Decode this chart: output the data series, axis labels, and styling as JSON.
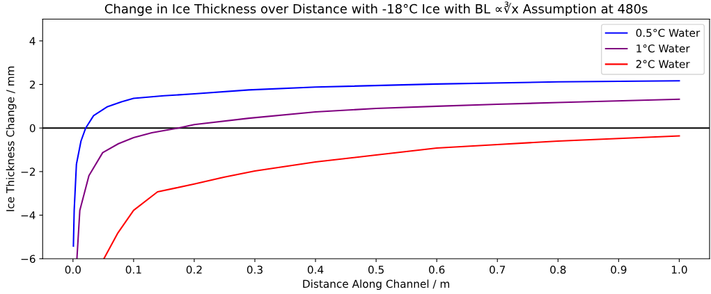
{
  "chart_data": {
    "type": "line",
    "title": "Change in Ice Thickness over Distance with -18°C Ice with BL ∝∛x Assumption at 480s",
    "xlabel": "Distance Along Channel / m",
    "ylabel": "Ice Thickness Change / mm",
    "xlim": [
      -0.05,
      1.05
    ],
    "xticks": [
      {
        "value": 0,
        "label": "0.0"
      },
      0.1,
      0.2,
      0.3,
      0.4,
      0.5,
      0.6,
      0.7,
      0.8,
      0.9,
      {
        "value": 1,
        "label": "1.0"
      }
    ],
    "ylim": [
      -6,
      5
    ],
    "yticks": [
      {
        "value": -6,
        "label": "−6"
      },
      {
        "value": -4,
        "label": "−4"
      },
      {
        "value": -2,
        "label": "−2"
      },
      0,
      2,
      4
    ],
    "grid": false,
    "legend": "top right",
    "line_style": "solid",
    "marker": "none",
    "ref_lines": [
      {
        "axis": "y",
        "value": 0,
        "color": "#000000"
      }
    ],
    "series": [
      {
        "name": "0.5°C Water",
        "color": "#0000ff",
        "x": [
          0.0007,
          0.002,
          0.0057,
          0.0132,
          0.021,
          0.034,
          0.057,
          0.08,
          0.1,
          0.15,
          0.2,
          0.29,
          0.4,
          0.6,
          0.8,
          1.0
        ],
        "values": [
          -5.42,
          -3.78,
          -1.66,
          -0.6,
          0,
          0.57,
          0.98,
          1.2,
          1.36,
          1.48,
          1.57,
          1.75,
          1.88,
          2.02,
          2.12,
          2.17
        ]
      },
      {
        "name": "1°C Water",
        "color": "#800080",
        "x": [
          0.0065,
          0.0113,
          0.0263,
          0.049,
          0.075,
          0.1,
          0.13,
          0.1735,
          0.2,
          0.29,
          0.4,
          0.5,
          0.6,
          0.7,
          0.8,
          1.0
        ],
        "values": [
          -6,
          -3.78,
          -2.19,
          -1.13,
          -0.72,
          -0.44,
          -0.22,
          0,
          0.16,
          0.45,
          0.74,
          0.9,
          1.0,
          1.09,
          1.17,
          1.32
        ]
      },
      {
        "name": "2°C Water",
        "color": "#ff0000",
        "x": [
          0.051,
          0.0735,
          0.1,
          0.1395,
          0.17,
          0.2,
          0.25,
          0.3,
          0.4,
          0.5,
          0.6,
          0.7,
          0.8,
          0.9,
          1.0
        ],
        "values": [
          -6,
          -4.84,
          -3.78,
          -2.93,
          -2.75,
          -2.57,
          -2.25,
          -1.97,
          -1.56,
          -1.24,
          -0.92,
          -0.76,
          -0.6,
          -0.48,
          -0.36
        ]
      }
    ]
  }
}
